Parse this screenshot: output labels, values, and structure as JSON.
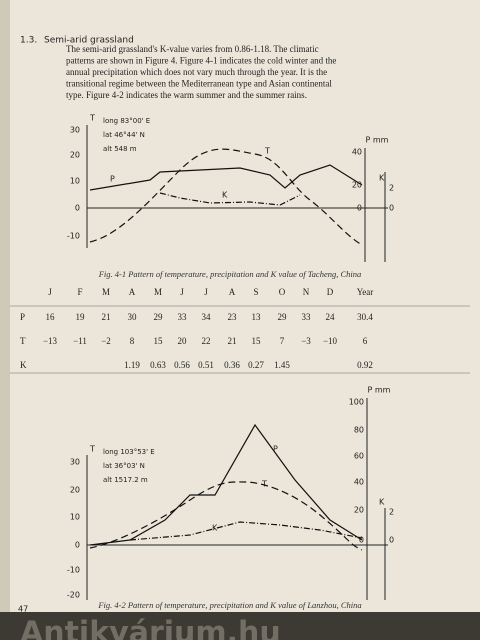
{
  "section": {
    "number": "1.3.",
    "title": "Semi-arid grassland",
    "paragraph": [
      "The semi-arid grassland's K-value varies from 0.86-1.18. The climatic",
      "patterns are shown in Figure 4. Figure 4-1 indicates the cold winter and the",
      "annual precipitation which does not vary much through the year. It is the",
      "transitional regime between the Mediterranean type and Asian continental",
      "type. Figure 4-2 indicates the warm summer and the summer rains."
    ]
  },
  "figure1": {
    "info": [
      "long 83°00' E",
      "lat 46°44' N",
      "alt 548 m"
    ],
    "left_axis_title": "T",
    "left_ticks": [
      "30",
      "20",
      "10",
      "0",
      "-10"
    ],
    "p_axis_title": "P mm",
    "p_ticks": [
      "40",
      "20",
      "0"
    ],
    "k_axis_title": "K",
    "k_ticks": [
      "2",
      "0"
    ],
    "curve_labels": {
      "T": "T",
      "P": "P",
      "K": "K"
    },
    "caption": "Fig. 4-1  Pattern of temperature, precipitation and K value of Tacheng, China"
  },
  "table": {
    "header": [
      "J",
      "F",
      "M",
      "A",
      "M",
      "J",
      "J",
      "A",
      "S",
      "O",
      "N",
      "D",
      "Year"
    ],
    "rows": [
      {
        "label": "P",
        "cells": [
          "16",
          "19",
          "21",
          "30",
          "29",
          "33",
          "34",
          "23",
          "13",
          "29",
          "33",
          "24",
          "30.4"
        ]
      },
      {
        "label": "T",
        "cells": [
          "−13",
          "−11",
          "−2",
          "8",
          "15",
          "20",
          "22",
          "21",
          "15",
          "7",
          "−3",
          "−10",
          "6"
        ]
      },
      {
        "label": "K",
        "cells": [
          null,
          null,
          null,
          "1.19",
          "0.63",
          "0.56",
          "0.51",
          "0.36",
          "0.27",
          "1.45",
          null,
          null,
          "0.92"
        ]
      }
    ]
  },
  "figure2": {
    "info": [
      "long 103°53' E",
      "lat 36°03' N",
      "alt 1517.2 m"
    ],
    "left_axis_title": "T",
    "left_ticks": [
      "30",
      "20",
      "10",
      "0",
      "-10",
      "-20"
    ],
    "p_axis_title": "P mm",
    "p_ticks": [
      "100",
      "80",
      "60",
      "40",
      "20",
      "0"
    ],
    "k_axis_title": "K",
    "k_ticks": [
      "2",
      "0"
    ],
    "curve_labels": {
      "T": "T",
      "P": "P",
      "K": "K"
    },
    "caption": "Fig. 4-2  Pattern of temperature, precipitation and K value of Lanzhou, China"
  },
  "page_number": "47",
  "watermark": "Antikvárium.hu"
}
